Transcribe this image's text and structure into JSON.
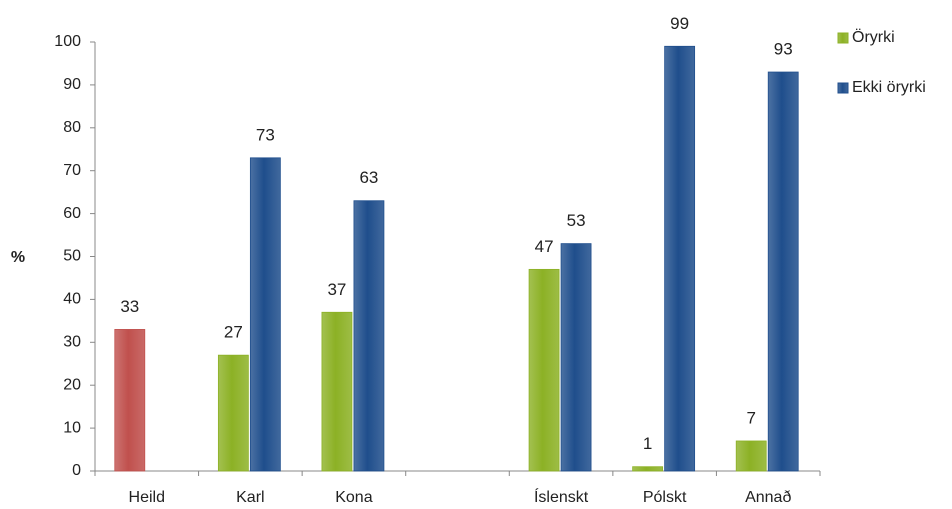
{
  "chart_data": {
    "type": "bar",
    "y_label": "%",
    "categories": [
      "Heild",
      "Karl",
      "Kona",
      null,
      "Íslenskt",
      "Pólskt",
      "Annað"
    ],
    "series": [
      {
        "color": "#c0504d",
        "values": [
          33,
          null,
          null,
          null,
          null,
          null,
          null
        ]
      },
      {
        "name": "Öryrki",
        "color": "#8cb125",
        "values": [
          null,
          27,
          37,
          null,
          47,
          1,
          7
        ]
      },
      {
        "name": "Ekki öryrki",
        "color": "#1f4e8c",
        "values": [
          null,
          73,
          63,
          null,
          53,
          99,
          93
        ]
      }
    ],
    "ylim": [
      0,
      100
    ],
    "yticks": [
      0,
      10,
      20,
      30,
      40,
      50,
      60,
      70,
      80,
      90,
      100
    ],
    "grid": false,
    "legend": "right"
  }
}
